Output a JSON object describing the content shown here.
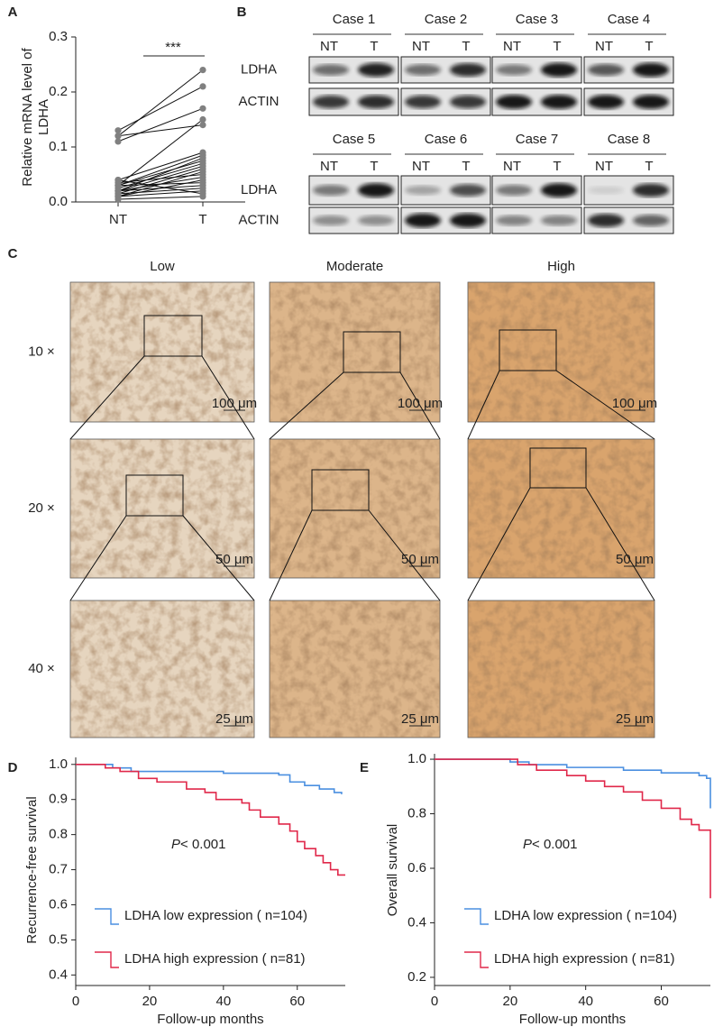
{
  "panel_labels": [
    "A",
    "B",
    "C",
    "D",
    "E"
  ],
  "blot": {
    "cases": [
      "Case 1",
      "Case 2",
      "Case 3",
      "Case 4",
      "Case 5",
      "Case 6",
      "Case 7",
      "Case 8"
    ],
    "lanes": [
      "NT",
      "T"
    ],
    "rows": [
      "LDHA",
      "ACTIN"
    ]
  },
  "ihc": {
    "columns": [
      "Low",
      "Moderate",
      "High"
    ],
    "rows": [
      "10 ×",
      "20 ×",
      "40 ×"
    ],
    "scale_bars": [
      "100 μm",
      "50 μm",
      "25 μm"
    ]
  },
  "chart_data": [
    {
      "type": "paired",
      "categories": [
        "NT",
        "T"
      ],
      "ylabel": "Relative mRNA level of LDHA",
      "annotation": "***",
      "ylim": [
        0,
        0.3
      ],
      "yticks": [
        {
          "value": 0,
          "label": "0.0"
        },
        0.1,
        0.2,
        0.3
      ],
      "color": "#808080",
      "pairs": [
        [
          0.12,
          0.24
        ],
        [
          0.13,
          0.21
        ],
        [
          0.11,
          0.17
        ],
        [
          0.03,
          0.15
        ],
        [
          0.12,
          0.14
        ],
        [
          0.04,
          0.09
        ],
        [
          0.03,
          0.085
        ],
        [
          0.02,
          0.08
        ],
        [
          0.03,
          0.075
        ],
        [
          0.025,
          0.07
        ],
        [
          0.02,
          0.065
        ],
        [
          0.015,
          0.06
        ],
        [
          0.01,
          0.055
        ],
        [
          0.035,
          0.05
        ],
        [
          0.02,
          0.045
        ],
        [
          0.01,
          0.04
        ],
        [
          0.03,
          0.035
        ],
        [
          0.02,
          0.03
        ],
        [
          0.015,
          0.025
        ],
        [
          0.01,
          0.02
        ],
        [
          0.04,
          0.015
        ],
        [
          0.005,
          0.01
        ]
      ]
    },
    {
      "type": "km",
      "xlabel": "Follow-up months",
      "ylabel": "Recurrence-free survival",
      "annotation": {
        "p": "P",
        "text": "< 0.001"
      },
      "xlim": [
        0,
        73
      ],
      "xticks": [
        0,
        20,
        40,
        60
      ],
      "ylim": [
        0.37,
        1.02
      ],
      "yticks": [
        0.4,
        0.5,
        0.6,
        0.7,
        0.8,
        0.9,
        {
          "value": 1,
          "label": "1.0"
        }
      ],
      "series": [
        {
          "name": "LDHA low expression ( n=104)",
          "color": "#4a8fe0",
          "x": [
            0,
            10,
            15,
            40,
            55,
            58,
            62,
            66,
            70,
            72
          ],
          "values": [
            1,
            0.99,
            0.98,
            0.975,
            0.97,
            0.95,
            0.94,
            0.93,
            0.92,
            0.915
          ]
        },
        {
          "name": "LDHA high expression ( n=81)",
          "color": "#e0284a",
          "x": [
            0,
            8,
            12,
            17,
            22,
            30,
            35,
            38,
            45,
            47,
            50,
            55,
            58,
            60,
            62,
            65,
            67,
            69,
            71,
            73
          ],
          "values": [
            1,
            0.99,
            0.98,
            0.96,
            0.95,
            0.93,
            0.92,
            0.9,
            0.89,
            0.87,
            0.85,
            0.83,
            0.81,
            0.78,
            0.76,
            0.74,
            0.72,
            0.7,
            0.685,
            0.685
          ]
        }
      ]
    },
    {
      "type": "km",
      "xlabel": "Follow-up months",
      "ylabel": "Overall survival",
      "annotation": {
        "p": "P",
        "text": "< 0.001"
      },
      "xlim": [
        0,
        73
      ],
      "xticks": [
        0,
        20,
        40,
        60
      ],
      "ylim": [
        0.17,
        1.02
      ],
      "yticks": [
        0.2,
        0.4,
        0.6,
        0.8,
        {
          "value": 1,
          "label": "1.0"
        }
      ],
      "series": [
        {
          "name": "LDHA low expression ( n=104)",
          "color": "#4a8fe0",
          "x": [
            0,
            20,
            25,
            35,
            50,
            60,
            70,
            72,
            73
          ],
          "values": [
            1,
            0.99,
            0.98,
            0.97,
            0.96,
            0.95,
            0.94,
            0.93,
            0.82
          ]
        },
        {
          "name": "LDHA high expression ( n=81)",
          "color": "#e0284a",
          "x": [
            0,
            20,
            22,
            27,
            35,
            40,
            45,
            50,
            55,
            60,
            65,
            68,
            70,
            73
          ],
          "values": [
            1,
            1,
            0.98,
            0.96,
            0.94,
            0.92,
            0.9,
            0.88,
            0.85,
            0.82,
            0.78,
            0.76,
            0.74,
            0.49
          ]
        }
      ]
    }
  ]
}
